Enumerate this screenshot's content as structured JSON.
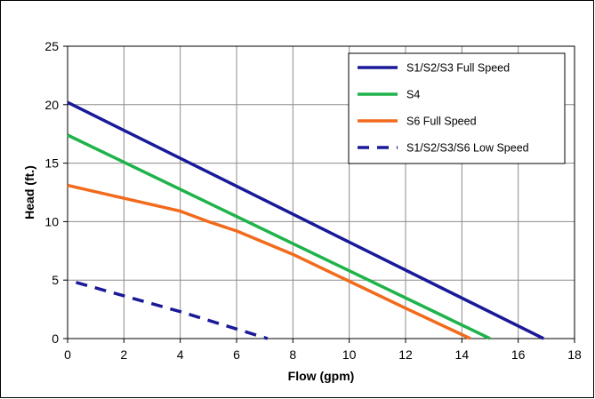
{
  "chart_data": {
    "type": "line",
    "title": "",
    "xlabel": "Flow (gpm)",
    "ylabel": "Head (ft.)",
    "xlim": [
      0,
      18
    ],
    "ylim": [
      0,
      25
    ],
    "x_ticks": [
      0,
      2,
      4,
      6,
      8,
      10,
      12,
      14,
      16,
      18
    ],
    "y_ticks": [
      0,
      5,
      10,
      15,
      20,
      25
    ],
    "x_tick_labels": [
      "0",
      "2",
      "4",
      "6",
      "8",
      "10",
      "12",
      "14",
      "16",
      "18"
    ],
    "y_tick_labels": [
      "0",
      "5",
      "10",
      "15",
      "20",
      "25"
    ],
    "grid": true,
    "legend_position": "top-right",
    "series": [
      {
        "name": "S1/S2/S3 Full Speed",
        "color": "#1a1a99",
        "style": "solid",
        "points": [
          [
            0,
            20.2
          ],
          [
            16.9,
            0
          ]
        ]
      },
      {
        "name": "S4",
        "color": "#1fb34a",
        "style": "solid",
        "points": [
          [
            0,
            17.4
          ],
          [
            15.0,
            0
          ]
        ]
      },
      {
        "name": "S6 Full Speed",
        "color": "#f26a1b",
        "style": "solid",
        "points": [
          [
            0,
            13.1
          ],
          [
            2,
            12.0
          ],
          [
            4,
            10.9
          ],
          [
            5,
            10.0
          ],
          [
            6,
            9.2
          ],
          [
            8,
            7.2
          ],
          [
            10,
            4.9
          ],
          [
            12,
            2.6
          ],
          [
            14.3,
            0
          ]
        ]
      },
      {
        "name": "S1/S2/S3/S6 Low Speed",
        "color": "#1a1a99",
        "style": "dashed",
        "points": [
          [
            0.3,
            4.8
          ],
          [
            4,
            2.3
          ],
          [
            7.1,
            0
          ]
        ]
      }
    ]
  }
}
